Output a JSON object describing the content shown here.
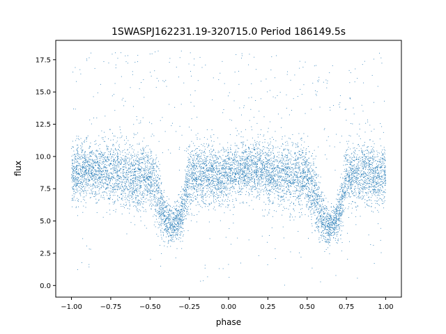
{
  "chart_data": {
    "type": "scatter",
    "title": "1SWASPJ162231.19-320715.0 Period 186149.5s",
    "xlabel": "phase",
    "ylabel": "flux",
    "xlim": [
      -1.1,
      1.1
    ],
    "ylim": [
      -0.9,
      19.0
    ],
    "xticks": [
      -1.0,
      -0.75,
      -0.5,
      -0.25,
      0.0,
      0.25,
      0.5,
      0.75,
      1.0
    ],
    "xtick_labels": [
      "−1.00",
      "−0.75",
      "−0.50",
      "−0.25",
      "0.00",
      "0.25",
      "0.50",
      "0.75",
      "1.00"
    ],
    "yticks": [
      0.0,
      2.5,
      5.0,
      7.5,
      10.0,
      12.5,
      15.0,
      17.5
    ],
    "ytick_labels": [
      "0.0",
      "2.5",
      "5.0",
      "7.5",
      "10.0",
      "12.5",
      "15.0",
      "17.5"
    ],
    "grid": false,
    "marker_color": "#1f77b4",
    "series": [
      {
        "phase_range": [
          -1.0,
          1.0
        ],
        "profile_one_cycle": [
          {
            "phase": 0.0,
            "flux_center": 8.6,
            "flux_spread": 1.3
          },
          {
            "phase": 0.1,
            "flux_center": 9.0,
            "flux_spread": 1.2
          },
          {
            "phase": 0.2,
            "flux_center": 8.9,
            "flux_spread": 1.3
          },
          {
            "phase": 0.3,
            "flux_center": 8.7,
            "flux_spread": 1.4
          },
          {
            "phase": 0.4,
            "flux_center": 8.5,
            "flux_spread": 1.5
          },
          {
            "phase": 0.5,
            "flux_center": 8.4,
            "flux_spread": 1.5
          },
          {
            "phase": 0.55,
            "flux_center": 7.0,
            "flux_spread": 1.6
          },
          {
            "phase": 0.6,
            "flux_center": 5.0,
            "flux_spread": 1.0
          },
          {
            "phase": 0.65,
            "flux_center": 4.6,
            "flux_spread": 0.8
          },
          {
            "phase": 0.7,
            "flux_center": 5.4,
            "flux_spread": 1.0
          },
          {
            "phase": 0.75,
            "flux_center": 8.4,
            "flux_spread": 1.4
          },
          {
            "phase": 0.85,
            "flux_center": 8.7,
            "flux_spread": 1.3
          },
          {
            "phase": 0.95,
            "flux_center": 8.4,
            "flux_spread": 1.3
          },
          {
            "phase": 1.0,
            "flux_center": 8.6,
            "flux_spread": 1.3
          }
        ],
        "outlier_flux_range": [
          0.0,
          18.2
        ]
      }
    ]
  }
}
